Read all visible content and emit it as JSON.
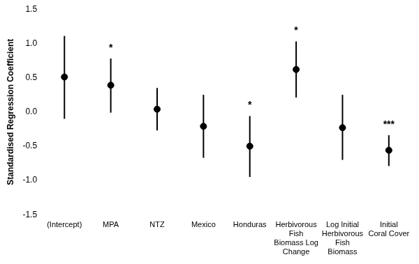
{
  "chart_data": {
    "type": "dot_errorbar",
    "y_label": "Standardised Regression Coefficient",
    "categories": [
      "(Intercept)",
      "MPA",
      "NTZ",
      "Mexico",
      "Honduras",
      "Herbivorous Fish Biomass Log Change",
      "Log Initial Herbivorous Fish Biomass",
      "Initial Coral Cover"
    ],
    "values": [
      0.51,
      0.39,
      0.04,
      -0.21,
      -0.5,
      0.62,
      -0.23,
      -0.56
    ],
    "lower": [
      -0.1,
      -0.01,
      -0.27,
      -0.67,
      -0.95,
      0.21,
      -0.7,
      -0.79
    ],
    "upper": [
      1.11,
      0.78,
      0.35,
      0.25,
      -0.06,
      1.03,
      0.25,
      -0.34
    ],
    "significance": [
      null,
      "*",
      null,
      null,
      "*",
      "*",
      null,
      "***"
    ],
    "color": "#000000",
    "marker": "circle",
    "ylim": [
      -1.5,
      1.5
    ],
    "yticks": [
      -1.5,
      {
        "value": -1,
        "label": "-1.0"
      },
      -0.5,
      {
        "value": 0,
        "label": "0.0"
      },
      0.5,
      {
        "value": 1,
        "label": "1.0"
      },
      1.5
    ],
    "grid": false
  }
}
